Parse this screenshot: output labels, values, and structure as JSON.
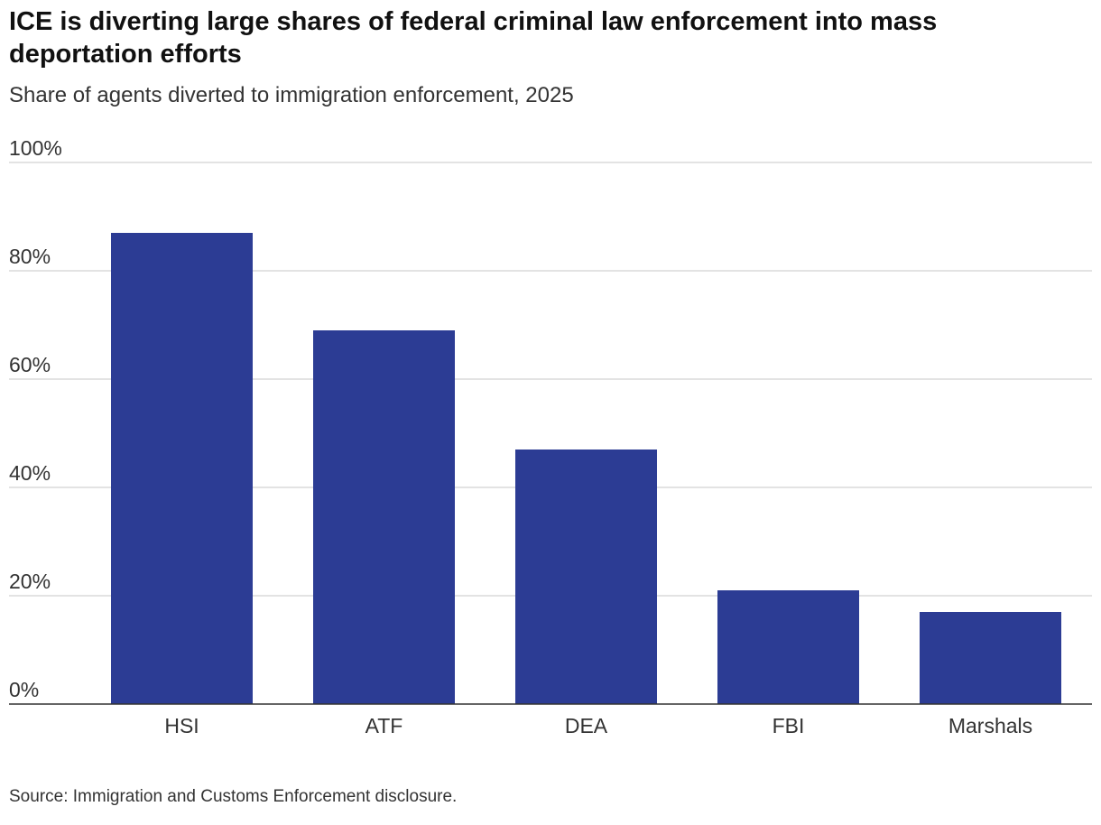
{
  "chart_data": {
    "type": "bar",
    "title": "ICE is diverting large shares of federal criminal law enforcement into mass deportation efforts",
    "subtitle": "Share of agents diverted to immigration enforcement, 2025",
    "categories": [
      "HSI",
      "ATF",
      "DEA",
      "FBI",
      "Marshals"
    ],
    "values": [
      87,
      69,
      47,
      21,
      17
    ],
    "ylim": [
      0,
      100
    ],
    "yticks": [
      0,
      20,
      40,
      60,
      80,
      100
    ],
    "ytick_labels": [
      "0%",
      "20%",
      "40%",
      "60%",
      "80%",
      "100%"
    ],
    "xlabel": "",
    "ylabel": "",
    "grid": true,
    "bar_color": "#2c3c94",
    "source": "Source: Immigration and Customs Enforcement disclosure."
  }
}
